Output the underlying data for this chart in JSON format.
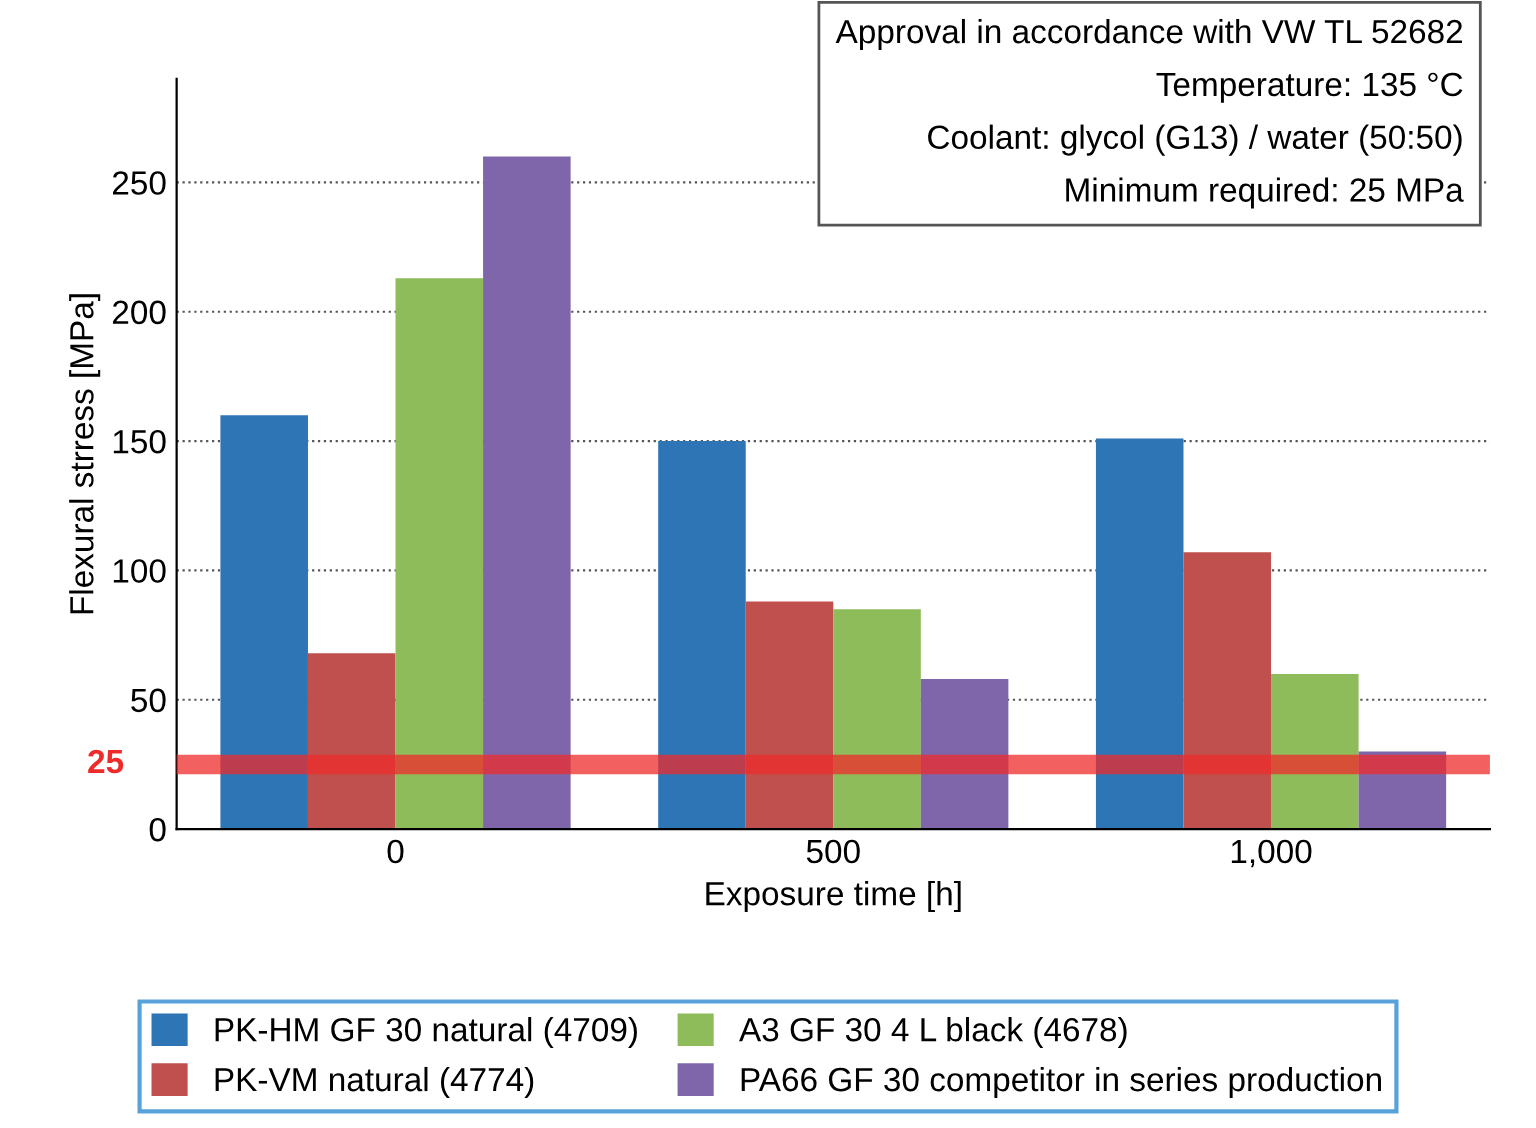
{
  "chart_data": {
    "type": "bar",
    "xlabel": "Exposure time [h]",
    "ylabel": "Flexural strress [MPa]",
    "categories": [
      "0",
      "500",
      "1,000"
    ],
    "series": [
      {
        "name": "PK-HM GF 30 natural (4709)",
        "color": "#2e75b6",
        "values": [
          160,
          150,
          151
        ]
      },
      {
        "name": "PK-VM natural (4774)",
        "color": "#c0504d",
        "values": [
          68,
          88,
          107
        ]
      },
      {
        "name": "A3 GF 30 4 L black (4678)",
        "color": "#8fbc5a",
        "values": [
          213,
          85,
          60
        ]
      },
      {
        "name": "PA66 GF 30 competitor in series production",
        "color": "#7f66aa",
        "values": [
          260,
          58,
          30
        ]
      }
    ],
    "ylim": [
      0,
      290
    ],
    "yticks": [
      0,
      50,
      100,
      150,
      200,
      250
    ],
    "grid": "y",
    "legend": "bottom",
    "ref_lines": [
      {
        "axis": "y",
        "value": 25,
        "label": "25",
        "color": "#ee2b2b"
      }
    ],
    "annotations": [
      "Approval in accordance with VW TL 52682",
      "Temperature: 135 °C",
      "Coolant: glycol (G13) / water (50:50)",
      "Minimum required: 25 MPa"
    ]
  }
}
